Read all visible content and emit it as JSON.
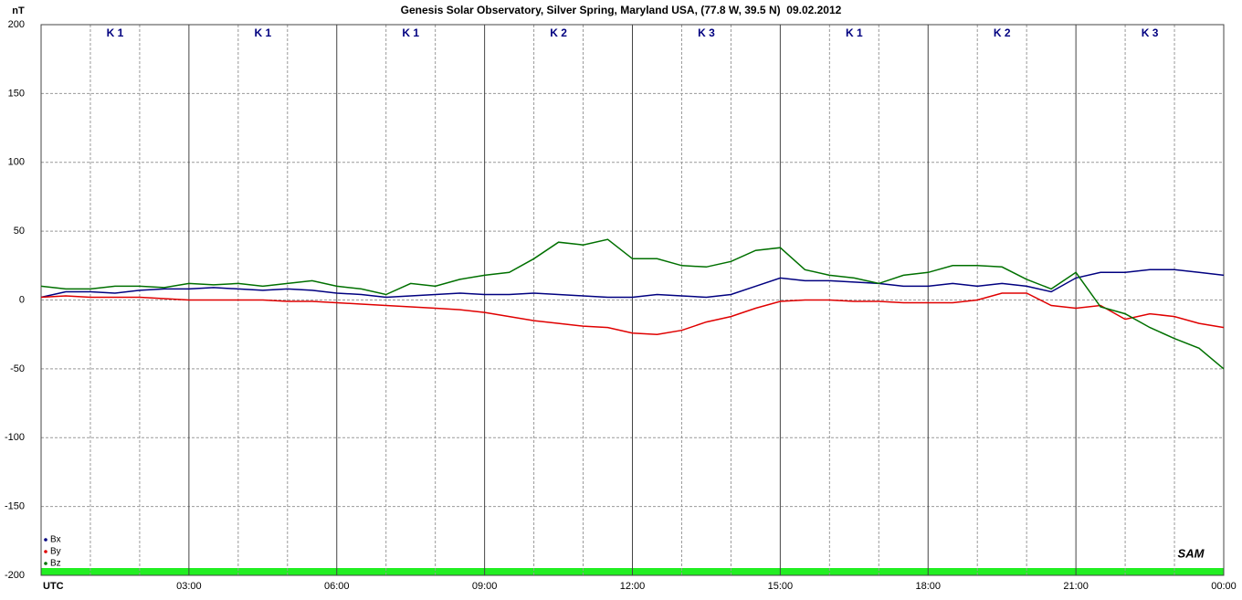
{
  "chart_data": {
    "type": "line",
    "title": "Genesis Solar Observatory, Silver Spring, Maryland USA, (77.8 W, 39.5 N)  09.02.2012",
    "ylabel": "nT",
    "logo": "SAM",
    "k_index": [
      "K 1",
      "K 1",
      "K 1",
      "K 2",
      "K 3",
      "K 1",
      "K 2",
      "K 3"
    ],
    "x": [
      0,
      0.5,
      1,
      1.5,
      2,
      2.5,
      3,
      3.5,
      4,
      4.5,
      5,
      5.5,
      6,
      6.5,
      7,
      7.5,
      8,
      8.5,
      9,
      9.5,
      10,
      10.5,
      11,
      11.5,
      12,
      12.5,
      13,
      13.5,
      14,
      14.5,
      15,
      15.5,
      16,
      16.5,
      17,
      17.5,
      18,
      18.5,
      19,
      19.5,
      20,
      20.5,
      21,
      21.5,
      22,
      22.5,
      23,
      23.5,
      24
    ],
    "xlim": [
      0,
      24
    ],
    "xticks": [
      {
        "value": 0,
        "label": "UTC"
      },
      {
        "value": 3,
        "label": "03:00"
      },
      {
        "value": 6,
        "label": "06:00"
      },
      {
        "value": 9,
        "label": "09:00"
      },
      {
        "value": 12,
        "label": "12:00"
      },
      {
        "value": 15,
        "label": "15:00"
      },
      {
        "value": 18,
        "label": "18:00"
      },
      {
        "value": 21,
        "label": "21:00"
      },
      {
        "value": 24,
        "label": "00:00"
      }
    ],
    "ylim": [
      -200,
      200
    ],
    "yticks": [
      200,
      150,
      100,
      50,
      0,
      -50,
      -100,
      -150,
      -200
    ],
    "grid": true,
    "legend": "lower left",
    "series": [
      {
        "name": "Bx",
        "color": "#000080",
        "values": [
          2,
          6,
          6,
          5,
          7,
          8,
          8,
          9,
          8,
          7,
          8,
          7,
          5,
          4,
          2,
          3,
          4,
          5,
          4,
          4,
          5,
          4,
          3,
          2,
          2,
          4,
          3,
          2,
          4,
          10,
          16,
          14,
          14,
          13,
          12,
          10,
          10,
          12,
          10,
          12,
          10,
          6,
          16,
          20,
          20,
          22,
          22,
          20,
          18
        ]
      },
      {
        "name": "By",
        "color": "#e00000",
        "values": [
          2,
          3,
          2,
          2,
          2,
          1,
          0,
          0,
          0,
          0,
          -1,
          -1,
          -2,
          -3,
          -4,
          -5,
          -6,
          -7,
          -9,
          -12,
          -15,
          -17,
          -19,
          -20,
          -24,
          -25,
          -22,
          -16,
          -12,
          -6,
          -1,
          0,
          0,
          -1,
          -1,
          -2,
          -2,
          -2,
          0,
          5,
          5,
          -4,
          -6,
          -4,
          -14,
          -10,
          -12,
          -17,
          -20
        ]
      },
      {
        "name": "Bz",
        "color": "#007000",
        "values": [
          10,
          8,
          8,
          10,
          10,
          9,
          12,
          11,
          12,
          10,
          12,
          14,
          10,
          8,
          4,
          12,
          10,
          15,
          18,
          20,
          30,
          42,
          40,
          44,
          30,
          30,
          25,
          24,
          28,
          36,
          38,
          22,
          18,
          16,
          12,
          18,
          20,
          25,
          25,
          24,
          15,
          8,
          20,
          -5,
          -10,
          -20,
          -28,
          -35,
          -50
        ]
      }
    ]
  }
}
